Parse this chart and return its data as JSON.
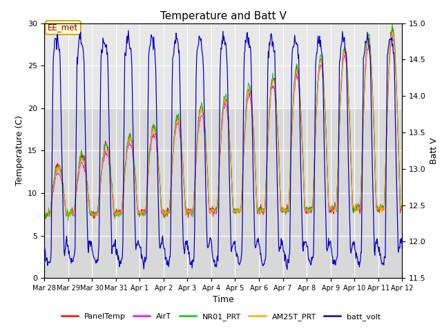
{
  "title": "Temperature and Batt V",
  "xlabel": "Time",
  "ylabel_left": "Temperature (C)",
  "ylabel_right": "Batt V",
  "ylim_left": [
    0,
    30
  ],
  "ylim_right": [
    11.5,
    15.0
  ],
  "yticks_left": [
    0,
    5,
    10,
    15,
    20,
    25,
    30
  ],
  "yticks_right": [
    11.5,
    12.0,
    12.5,
    13.0,
    13.5,
    14.0,
    14.5,
    15.0
  ],
  "xticklabels": [
    "Mar 28",
    "Mar 29",
    "Mar 30",
    "Mar 31",
    "Apr 1",
    "Apr 2",
    "Apr 3",
    "Apr 4",
    "Apr 5",
    "Apr 6",
    "Apr 7",
    "Apr 8",
    "Apr 9",
    "Apr 10",
    "Apr 11",
    "Apr 12"
  ],
  "legend_labels": [
    "PanelTemp",
    "AirT",
    "NR01_PRT",
    "AM25T_PRT",
    "batt_volt"
  ],
  "legend_colors": [
    "#ff0000",
    "#ff00ff",
    "#00cc00",
    "#ffaa00",
    "#0000cc"
  ],
  "annotation_text": "EE_met",
  "annotation_fg": "#880000",
  "annotation_bg": "#ffffcc",
  "annotation_edge": "#cc9900",
  "bg_lower": "#d8d8d8",
  "bg_upper": "#e8e8e8",
  "grid_color": "#ffffff",
  "n_days": 15,
  "samples_per_day": 48
}
